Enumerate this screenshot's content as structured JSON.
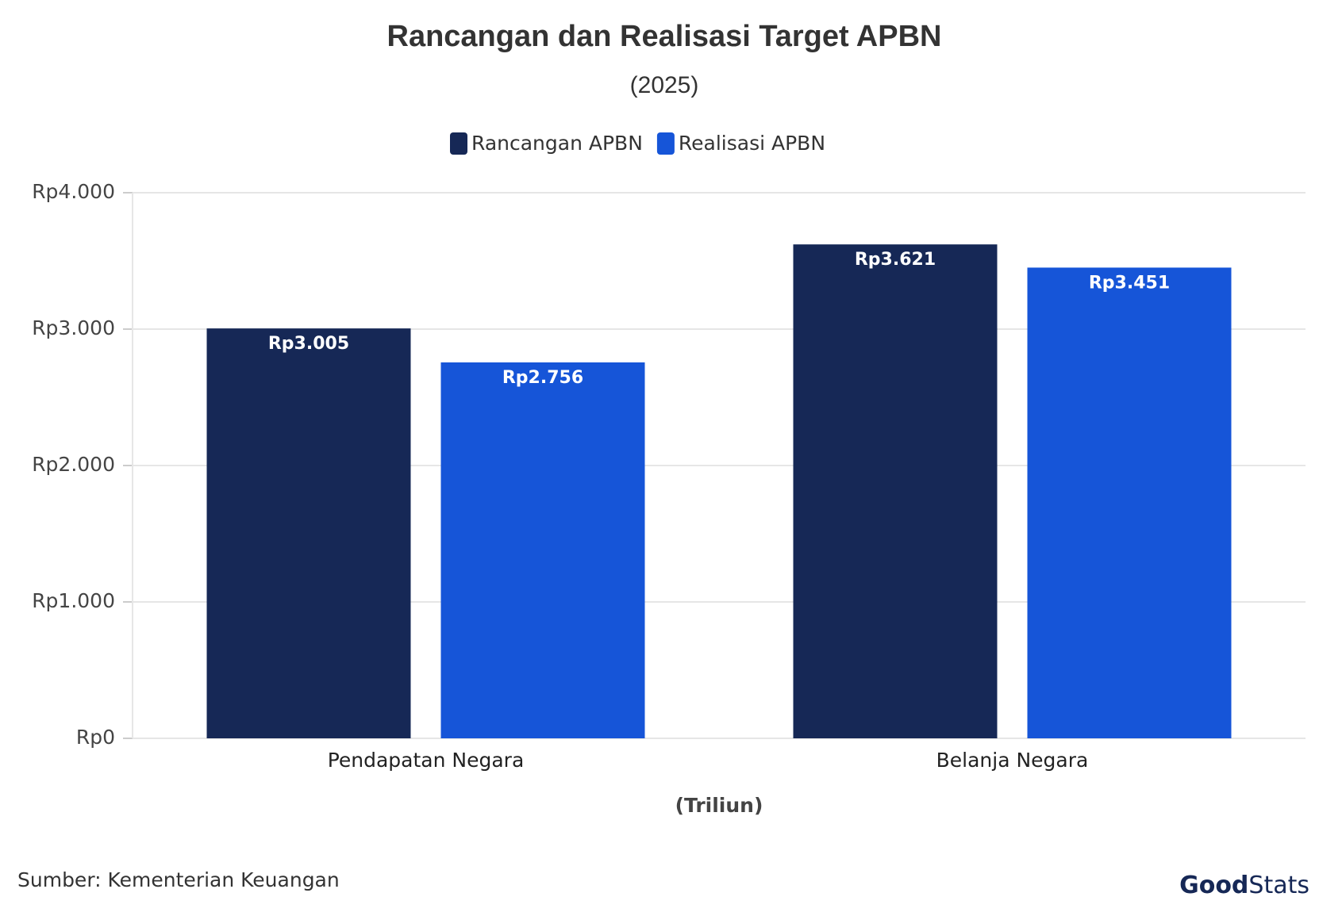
{
  "chart_data": {
    "type": "bar",
    "title": "Rancangan dan Realisasi Target APBN",
    "subtitle": "(2025)",
    "categories": [
      "Pendapatan Negara",
      "Belanja Negara"
    ],
    "series": [
      {
        "name": "Rancangan APBN",
        "color": "#162856",
        "values": [
          3005,
          3621
        ],
        "value_labels": [
          "Rp3.005",
          "Rp3.621"
        ]
      },
      {
        "name": "Realisasi APBN",
        "color": "#1655d8",
        "values": [
          2756,
          3451
        ],
        "value_labels": [
          "Rp2.756",
          "Rp3.451"
        ]
      }
    ],
    "ylim": [
      0,
      4000
    ],
    "yticks": [
      {
        "value": 0,
        "label": "Rp0"
      },
      {
        "value": 1000,
        "label": "Rp1.000"
      },
      {
        "value": 2000,
        "label": "Rp2.000"
      },
      {
        "value": 3000,
        "label": "Rp3.000"
      },
      {
        "value": 4000,
        "label": "Rp4.000"
      }
    ],
    "grid": true,
    "legend": "top",
    "x_label": "(Triliun)",
    "source": "Sumber: Kementerian Keuangan",
    "logo": [
      "Good",
      "Stats"
    ]
  }
}
